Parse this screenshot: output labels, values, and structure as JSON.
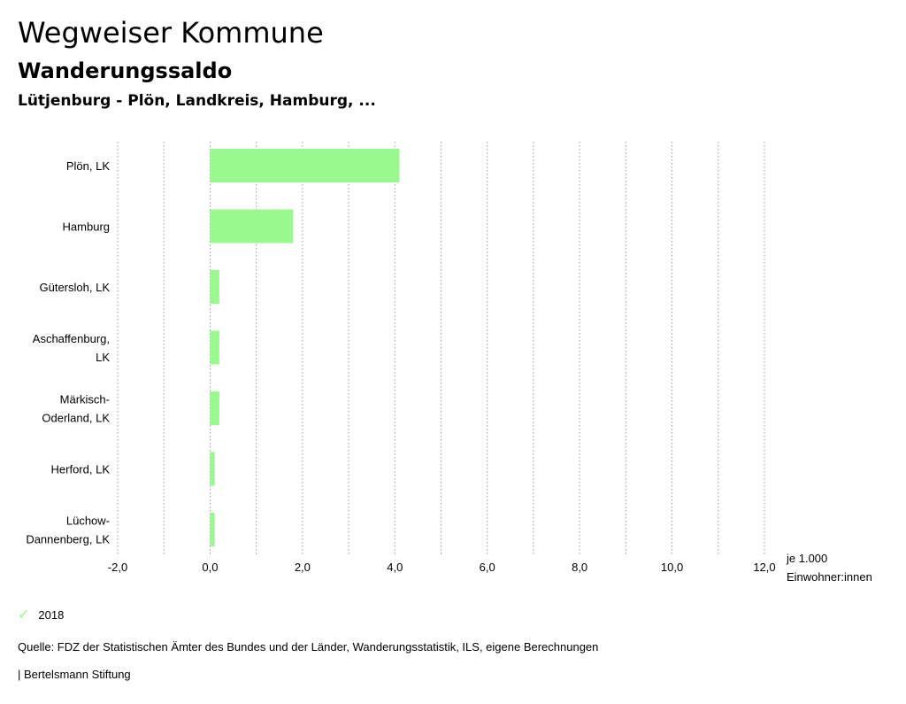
{
  "header": {
    "title": "Wegweiser Kommune",
    "subtitle": "Wanderungssaldo",
    "region": "Lütjenburg - Plön, Landkreis, Hamburg, ..."
  },
  "legend": {
    "label": "2018",
    "icon": "check-icon",
    "color": "#99f98f"
  },
  "footer": {
    "source": "Quelle: FDZ der Statistischen Ämter des Bundes und der Länder, Wanderungsstatistik, ILS, eigene Berechnungen",
    "publisher": "| Bertelsmann Stiftung"
  },
  "chart_data": {
    "type": "bar",
    "orientation": "horizontal",
    "title": "Wanderungssaldo",
    "xlabel_lines": [
      "je 1.000",
      "Einwohner:innen"
    ],
    "xlim": [
      -2,
      12
    ],
    "xticks": [
      -2,
      0,
      2,
      4,
      6,
      8,
      10,
      12
    ],
    "xtick_labels": [
      "-2,0",
      "0,0",
      "2,0",
      "4,0",
      "6,0",
      "8,0",
      "10,0",
      "12,0"
    ],
    "grid": true,
    "categories": [
      [
        "Plön, LK"
      ],
      [
        "Hamburg"
      ],
      [
        "Gütersloh, LK"
      ],
      [
        "Aschaffenburg,",
        "LK"
      ],
      [
        "Märkisch-",
        "Oderland, LK"
      ],
      [
        "Herford, LK"
      ],
      [
        "Lüchow-",
        "Dannenberg, LK"
      ]
    ],
    "series": [
      {
        "name": "2018",
        "color": "#99f98f",
        "values": [
          4.1,
          1.8,
          0.2,
          0.2,
          0.2,
          0.1,
          0.1
        ]
      }
    ]
  }
}
